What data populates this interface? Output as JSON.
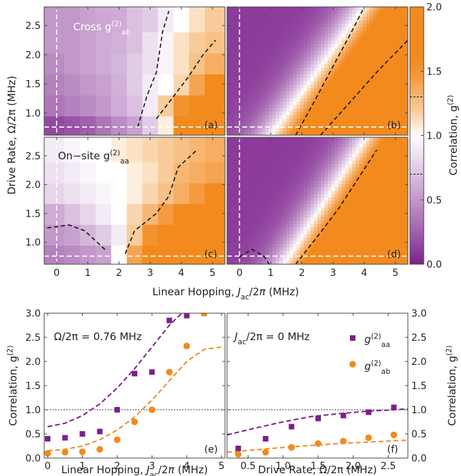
{
  "colors": {
    "purple": "#7b1f8c",
    "orange": "#f28a1e",
    "white": "#ffffff",
    "dash_black": "#111111",
    "dash_white": "#ffffff"
  },
  "chart_data": [
    {
      "id": "a",
      "type": "heatmap",
      "panel_label": "(a)",
      "title": "Cross g(2)ab",
      "title_main": "Cross g",
      "title_sup": "(2)",
      "title_sub": "ab",
      "xlabel": "Linear Hopping, Jac/2π (MHz)",
      "ylabel": "Drive Rate, Ω/2π (MHz)",
      "xlim": [
        -0.4,
        5.4
      ],
      "ylim": [
        0.62,
        2.82
      ],
      "x_ticks": [
        "0",
        "1",
        "2",
        "3",
        "4",
        "5"
      ],
      "y_ticks": [
        "1.0",
        "1.5",
        "2.0",
        "2.5"
      ],
      "x": [
        0,
        0.5,
        1,
        1.5,
        2,
        2.5,
        3,
        3.5,
        4,
        4.5,
        5
      ],
      "y": [
        0.76,
        1.14,
        1.5,
        1.86,
        2.22,
        2.58
      ],
      "values": [
        [
          0.15,
          0.2,
          0.25,
          0.35,
          0.45,
          0.55,
          0.75,
          1.05,
          1.85,
          2.0,
          2.0
        ],
        [
          0.35,
          0.4,
          0.45,
          0.5,
          0.6,
          0.7,
          0.9,
          1.2,
          1.5,
          1.8,
          2.0
        ],
        [
          0.4,
          0.45,
          0.5,
          0.55,
          0.62,
          0.75,
          0.9,
          1.0,
          1.15,
          1.4,
          1.6
        ],
        [
          0.45,
          0.5,
          0.55,
          0.6,
          0.65,
          0.75,
          0.85,
          0.95,
          1.1,
          1.25,
          1.35
        ],
        [
          0.5,
          0.5,
          0.55,
          0.6,
          0.62,
          0.7,
          0.85,
          0.95,
          1.1,
          1.2,
          1.25
        ],
        [
          0.5,
          0.5,
          0.55,
          0.58,
          0.6,
          0.7,
          0.75,
          0.9,
          1.0,
          1.1,
          1.2
        ]
      ],
      "contour1": [
        [
          2.6,
          0.76
        ],
        [
          2.9,
          1.3
        ],
        [
          3.2,
          1.7
        ],
        [
          3.4,
          2.4
        ],
        [
          3.6,
          2.75
        ]
      ],
      "contour2": [
        [
          3.2,
          0.9
        ],
        [
          3.7,
          1.25
        ],
        [
          4.2,
          1.6
        ],
        [
          4.7,
          2.0
        ],
        [
          5.1,
          2.25
        ]
      ]
    },
    {
      "id": "b",
      "type": "heatmap",
      "panel_label": "(b)",
      "xlim": [
        -0.4,
        5.4
      ],
      "ylim": [
        0.62,
        2.82
      ],
      "x_ticks": [
        "0",
        "1",
        "2",
        "3",
        "4",
        "5"
      ],
      "contour1": [
        [
          1.8,
          0.62
        ],
        [
          2.4,
          1.2
        ],
        [
          3.0,
          1.8
        ],
        [
          3.6,
          2.4
        ],
        [
          4.0,
          2.82
        ]
      ],
      "contour2": [
        [
          2.6,
          0.62
        ],
        [
          3.4,
          1.1
        ],
        [
          4.4,
          1.7
        ],
        [
          5.4,
          2.25
        ]
      ]
    },
    {
      "id": "c",
      "type": "heatmap",
      "panel_label": "(c)",
      "title": "On−site g(2)aa",
      "title_main": "On−site g",
      "title_sup": "(2)",
      "title_sub": "aa",
      "xlim": [
        -0.4,
        5.4
      ],
      "ylim": [
        0.62,
        2.82
      ],
      "x_ticks": [
        "0",
        "1",
        "2",
        "3",
        "4",
        "5"
      ],
      "y_ticks": [
        "1.0",
        "1.5",
        "2.0",
        "2.5"
      ],
      "x": [
        0,
        0.5,
        1,
        1.5,
        2,
        2.5,
        3,
        3.5,
        4,
        4.5,
        5
      ],
      "y": [
        0.76,
        1.14,
        1.5,
        1.86,
        2.22,
        2.58
      ],
      "values": [
        [
          0.4,
          0.45,
          0.5,
          0.55,
          1.0,
          1.4,
          1.75,
          1.8,
          2.0,
          2.0,
          2.0
        ],
        [
          0.5,
          0.55,
          0.65,
          0.75,
          0.9,
          1.2,
          1.5,
          1.7,
          1.9,
          2.0,
          2.0
        ],
        [
          0.6,
          0.7,
          0.8,
          0.9,
          1.0,
          1.15,
          1.3,
          1.45,
          1.6,
          1.8,
          1.9
        ],
        [
          0.8,
          0.85,
          0.9,
          0.95,
          1.0,
          1.05,
          1.15,
          1.25,
          1.35,
          1.45,
          1.55
        ],
        [
          0.85,
          0.9,
          0.95,
          1.0,
          1.0,
          1.05,
          1.1,
          1.2,
          1.3,
          1.35,
          1.4
        ],
        [
          0.9,
          0.95,
          1.0,
          1.0,
          1.05,
          1.1,
          1.15,
          1.2,
          1.25,
          1.3,
          1.35
        ]
      ],
      "contour1": [
        [
          -0.3,
          1.25
        ],
        [
          0.4,
          1.3
        ],
        [
          0.9,
          1.2
        ],
        [
          1.3,
          1.0
        ],
        [
          1.6,
          0.85
        ]
      ],
      "contour2": [
        [
          2.2,
          0.8
        ],
        [
          2.5,
          1.2
        ],
        [
          3.2,
          1.5
        ],
        [
          3.6,
          1.8
        ],
        [
          3.9,
          2.3
        ],
        [
          4.5,
          2.6
        ]
      ]
    },
    {
      "id": "d",
      "type": "heatmap",
      "panel_label": "(d)",
      "xlim": [
        -0.4,
        5.4
      ],
      "ylim": [
        0.62,
        2.82
      ],
      "x_ticks": [
        "0",
        "1",
        "2",
        "3",
        "4",
        "5"
      ],
      "contour1": [
        [
          0.0,
          0.75
        ],
        [
          0.4,
          0.88
        ],
        [
          0.8,
          0.75
        ],
        [
          0.95,
          0.62
        ]
      ],
      "contour2": [
        [
          1.8,
          0.62
        ],
        [
          2.5,
          1.1
        ],
        [
          3.2,
          1.6
        ],
        [
          3.8,
          2.1
        ],
        [
          4.4,
          2.6
        ]
      ]
    },
    {
      "id": "cbar",
      "type": "colorbar",
      "label": "Correlation, g(2)",
      "label_main": "Correlation, g",
      "label_sup": "(2)",
      "range": [
        0.0,
        2.0
      ],
      "ticks": [
        "0.0",
        "0.5",
        "1.0",
        "1.5",
        "2.0"
      ]
    },
    {
      "id": "e",
      "type": "scatter",
      "panel_label": "(e)",
      "annotation": "Ω/2π = 0.76 MHz",
      "xlabel": "Linear Hopping, Jac/2π (MHz)",
      "xlabel_pre": "Linear Hopping, J",
      "xlabel_sub": "ac",
      "xlabel_post": "/2π (MHz)",
      "ylabel": "Correlation, g(2)",
      "ylabel_main": "Correlation, g",
      "ylabel_sup": "(2)",
      "xlim": [
        -0.1,
        5.1
      ],
      "ylim": [
        0,
        3.0
      ],
      "x_ticks": [
        "0",
        "1",
        "2",
        "3",
        "4",
        "5"
      ],
      "y_ticks": [
        "0.0",
        "0.5",
        "1.0",
        "1.5",
        "2.0",
        "2.5",
        "3.0"
      ],
      "series": [
        {
          "name": "g(2)aa",
          "x": [
            0,
            0.5,
            1,
            1.5,
            2,
            2.5,
            3,
            3.5,
            4,
            4.5
          ],
          "y": [
            0.4,
            0.42,
            0.5,
            0.55,
            1.0,
            1.75,
            1.78,
            2.85,
            2.95,
            3.0
          ]
        },
        {
          "name": "g(2)ab",
          "x": [
            0,
            0.5,
            1,
            1.5,
            2,
            2.5,
            3,
            3.5,
            4,
            4.5
          ],
          "y": [
            0.1,
            0.12,
            0.13,
            0.18,
            0.38,
            0.75,
            1.0,
            1.78,
            2.32,
            3.0
          ]
        }
      ],
      "fit_aa": {
        "x": [
          0,
          0.5,
          1,
          1.5,
          2,
          2.5,
          3,
          3.5,
          4
        ],
        "y": [
          0.65,
          0.72,
          0.88,
          1.12,
          1.45,
          1.85,
          2.3,
          2.75,
          3.1
        ]
      },
      "fit_ab": {
        "x": [
          0,
          0.5,
          1,
          1.5,
          2,
          2.5,
          3,
          3.5,
          4,
          4.5,
          5
        ],
        "y": [
          0.15,
          0.18,
          0.25,
          0.38,
          0.58,
          0.85,
          1.2,
          1.6,
          2.0,
          2.25,
          2.3
        ]
      }
    },
    {
      "id": "f",
      "type": "scatter",
      "panel_label": "(f)",
      "annotation": "Jac/2π = 0 MHz",
      "annotation_pre": "J",
      "annotation_sub": "ac",
      "annotation_post": "/2π = 0 MHz",
      "xlabel": "Drive Rate, Ω/2π (MHz)",
      "ylabel": "Correlation, g(2)",
      "ylabel_main": "Correlation, g",
      "ylabel_sup": "(2)",
      "xlim": [
        0.2,
        2.78
      ],
      "ylim": [
        0,
        3.0
      ],
      "x_ticks": [
        "0.5",
        "1.0",
        "1.5",
        "2.0",
        "2.5"
      ],
      "y_ticks": [
        "0.0",
        "0.5",
        "1.0",
        "1.5",
        "2.0",
        "2.5",
        "3.0"
      ],
      "series": [
        {
          "name": "g(2)aa",
          "name_main": "g",
          "name_sup": "(2)",
          "name_sub": "aa",
          "x": [
            0.36,
            0.75,
            1.12,
            1.5,
            1.86,
            2.22,
            2.58
          ],
          "y": [
            0.2,
            0.4,
            0.65,
            0.82,
            0.88,
            0.95,
            1.05
          ]
        },
        {
          "name": "g(2)ab",
          "name_main": "g",
          "name_sup": "(2)",
          "name_sub": "ab",
          "x": [
            0.36,
            0.75,
            1.12,
            1.5,
            1.86,
            2.22,
            2.58
          ],
          "y": [
            0.08,
            0.12,
            0.22,
            0.3,
            0.35,
            0.42,
            0.48
          ]
        }
      ],
      "fit_aa": {
        "x": [
          0.2,
          0.6,
          1.0,
          1.4,
          1.8,
          2.2,
          2.6,
          2.78
        ],
        "y": [
          0.48,
          0.62,
          0.75,
          0.86,
          0.92,
          0.97,
          1.0,
          1.02
        ]
      },
      "fit_ab": {
        "x": [
          0.2,
          0.6,
          1.0,
          1.4,
          1.8,
          2.2,
          2.6,
          2.78
        ],
        "y": [
          0.12,
          0.17,
          0.22,
          0.26,
          0.3,
          0.33,
          0.36,
          0.37
        ]
      }
    }
  ]
}
